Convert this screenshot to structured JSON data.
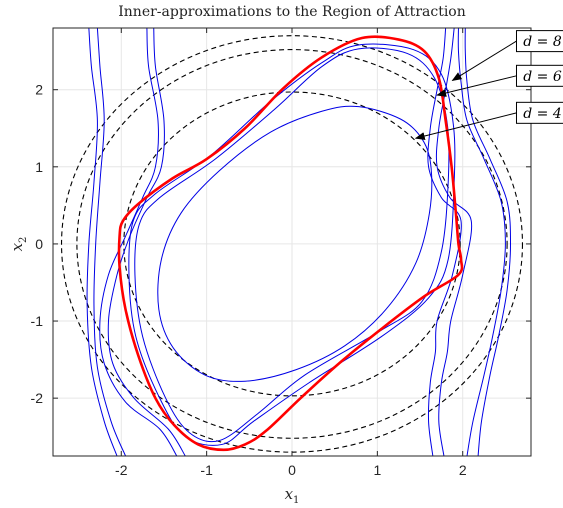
{
  "chart_data": {
    "type": "line",
    "title": "Inner-approximations to the Region of Attraction",
    "xlabel": "x",
    "xlabel_sub": "1",
    "ylabel": "x",
    "ylabel_sub": "2",
    "xlim": [
      -2.8,
      2.8
    ],
    "ylim": [
      -2.75,
      2.8
    ],
    "xticks": [
      -2,
      -1,
      0,
      1,
      2
    ],
    "yticks": [
      -2,
      -1,
      0,
      1,
      2
    ],
    "grid": true,
    "circles": [
      {
        "name": "level-set-d4",
        "radius": 1.97,
        "color": "#000000",
        "dash": true
      },
      {
        "name": "level-set-d6",
        "radius": 2.52,
        "color": "#000000",
        "dash": true
      },
      {
        "name": "level-set-d8",
        "radius": 2.7,
        "color": "#000000",
        "dash": true
      }
    ],
    "inner_regions": [
      {
        "color": "#0000e6",
        "points": [
          [
            0.78,
            1.78
          ],
          [
            1.27,
            1.62
          ],
          [
            1.53,
            1.35
          ],
          [
            1.63,
            0.98
          ],
          [
            1.61,
            0.4
          ],
          [
            1.45,
            -0.25
          ],
          [
            1.1,
            -0.85
          ],
          [
            0.62,
            -1.32
          ],
          [
            0.05,
            -1.63
          ],
          [
            -0.55,
            -1.78
          ],
          [
            -1.02,
            -1.7
          ],
          [
            -1.39,
            -1.35
          ],
          [
            -1.56,
            -0.85
          ],
          [
            -1.53,
            -0.2
          ],
          [
            -1.3,
            0.4
          ],
          [
            -0.85,
            0.95
          ],
          [
            -0.25,
            1.45
          ],
          [
            0.35,
            1.72
          ]
        ]
      },
      {
        "color": "#0000e6",
        "points": [
          [
            0.78,
            2.53
          ],
          [
            1.35,
            2.47
          ],
          [
            1.67,
            2.15
          ],
          [
            1.82,
            1.55
          ],
          [
            1.83,
            0.8
          ],
          [
            1.75,
            -0.1
          ],
          [
            1.52,
            -0.75
          ],
          [
            1.0,
            -1.15
          ],
          [
            0.15,
            -1.7
          ],
          [
            -0.4,
            -2.2
          ],
          [
            -0.85,
            -2.55
          ],
          [
            -1.2,
            -2.45
          ],
          [
            -1.48,
            -2.0
          ],
          [
            -1.75,
            -1.2
          ],
          [
            -1.84,
            -0.4
          ],
          [
            -1.79,
            0.25
          ],
          [
            -1.55,
            0.6
          ],
          [
            -0.9,
            1.1
          ],
          [
            -0.2,
            1.75
          ],
          [
            0.35,
            2.3
          ]
        ]
      },
      {
        "color": "#0000e6",
        "points": [
          [
            0.78,
            2.58
          ],
          [
            1.42,
            2.52
          ],
          [
            1.75,
            2.2
          ],
          [
            1.89,
            1.55
          ],
          [
            1.9,
            0.8
          ],
          [
            1.83,
            -0.2
          ],
          [
            1.6,
            -0.7
          ],
          [
            1.05,
            -1.2
          ],
          [
            0.2,
            -1.8
          ],
          [
            -0.45,
            -2.3
          ],
          [
            -0.82,
            -2.6
          ],
          [
            -1.25,
            -2.5
          ],
          [
            -1.55,
            -2.0
          ],
          [
            -1.83,
            -1.2
          ],
          [
            -1.91,
            -0.4
          ],
          [
            -1.86,
            0.3
          ],
          [
            -1.6,
            0.65
          ],
          [
            -0.95,
            1.15
          ],
          [
            -0.25,
            1.85
          ],
          [
            0.35,
            2.35
          ]
        ]
      }
    ],
    "outer_curves": [
      {
        "color": "#0000e6",
        "points": [
          [
            -2.05,
            -2.75
          ],
          [
            -2.2,
            -2.3
          ],
          [
            -2.35,
            -1.6
          ],
          [
            -2.4,
            -0.8
          ],
          [
            -2.38,
            0.0
          ],
          [
            -2.32,
            0.8
          ],
          [
            -2.28,
            1.6
          ],
          [
            -2.35,
            2.3
          ],
          [
            -2.38,
            2.8
          ]
        ]
      },
      {
        "color": "#0000e6",
        "points": [
          [
            -1.95,
            -2.75
          ],
          [
            -2.12,
            -2.3
          ],
          [
            -2.28,
            -1.6
          ],
          [
            -2.32,
            -0.8
          ],
          [
            -2.3,
            0.0
          ],
          [
            -2.25,
            0.8
          ],
          [
            -2.2,
            1.6
          ],
          [
            -2.25,
            2.3
          ],
          [
            -2.28,
            2.8
          ]
        ]
      },
      {
        "color": "#0000e6",
        "points": [
          [
            -1.35,
            -2.75
          ],
          [
            -1.55,
            -2.4
          ],
          [
            -1.95,
            -2.05
          ],
          [
            -2.2,
            -1.55
          ],
          [
            -2.25,
            -1.0
          ],
          [
            -2.15,
            -0.4
          ],
          [
            -1.95,
            0.1
          ],
          [
            -1.75,
            0.6
          ],
          [
            -1.6,
            1.0
          ],
          [
            -1.57,
            1.6
          ],
          [
            -1.68,
            2.3
          ],
          [
            -1.7,
            2.8
          ]
        ]
      },
      {
        "color": "#0000e6",
        "points": [
          [
            -1.25,
            -2.75
          ],
          [
            -1.45,
            -2.4
          ],
          [
            -1.85,
            -2.0
          ],
          [
            -2.1,
            -1.55
          ],
          [
            -2.15,
            -1.0
          ],
          [
            -2.05,
            -0.4
          ],
          [
            -1.9,
            0.1
          ],
          [
            -1.7,
            0.6
          ],
          [
            -1.53,
            1.0
          ],
          [
            -1.5,
            1.6
          ],
          [
            -1.6,
            2.3
          ],
          [
            -1.62,
            2.8
          ]
        ]
      },
      {
        "color": "#0000e6",
        "points": [
          [
            1.65,
            -2.75
          ],
          [
            1.6,
            -2.3
          ],
          [
            1.62,
            -1.8
          ],
          [
            1.68,
            -1.4
          ],
          [
            1.7,
            -1.0
          ],
          [
            1.88,
            -0.4
          ],
          [
            1.98,
            0.3
          ],
          [
            1.75,
            0.6
          ],
          [
            1.6,
            1.0
          ],
          [
            1.62,
            1.5
          ],
          [
            1.7,
            2.0
          ],
          [
            1.77,
            2.4
          ],
          [
            1.8,
            2.8
          ]
        ]
      },
      {
        "color": "#0000e6",
        "points": [
          [
            1.78,
            -2.75
          ],
          [
            1.72,
            -2.3
          ],
          [
            1.75,
            -1.8
          ],
          [
            1.82,
            -1.4
          ],
          [
            1.86,
            -1.0
          ],
          [
            2.0,
            -0.4
          ],
          [
            2.1,
            0.3
          ],
          [
            1.85,
            0.6
          ],
          [
            1.7,
            1.0
          ],
          [
            1.72,
            1.5
          ],
          [
            1.8,
            2.0
          ],
          [
            1.86,
            2.4
          ],
          [
            1.9,
            2.8
          ]
        ]
      },
      {
        "color": "#0000e6",
        "points": [
          [
            2.05,
            -2.75
          ],
          [
            2.12,
            -2.3
          ],
          [
            2.25,
            -1.7
          ],
          [
            2.35,
            -1.2
          ],
          [
            2.45,
            -0.6
          ],
          [
            2.5,
            0.0
          ],
          [
            2.45,
            0.55
          ],
          [
            2.25,
            1.1
          ],
          [
            2.05,
            1.6
          ],
          [
            1.98,
            2.1
          ],
          [
            1.95,
            2.5
          ],
          [
            1.95,
            2.8
          ]
        ]
      },
      {
        "color": "#0000e6",
        "points": [
          [
            2.18,
            -2.75
          ],
          [
            2.22,
            -2.3
          ],
          [
            2.32,
            -1.7
          ],
          [
            2.42,
            -1.2
          ],
          [
            2.52,
            -0.6
          ],
          [
            2.56,
            0.0
          ],
          [
            2.52,
            0.55
          ],
          [
            2.32,
            1.1
          ],
          [
            2.12,
            1.6
          ],
          [
            2.05,
            2.1
          ],
          [
            2.03,
            2.5
          ],
          [
            2.03,
            2.8
          ]
        ]
      }
    ],
    "highlight_region": {
      "color": "#ff0000",
      "points": [
        [
          0.82,
          2.67
        ],
        [
          1.25,
          2.65
        ],
        [
          1.55,
          2.5
        ],
        [
          1.72,
          2.15
        ],
        [
          1.8,
          1.6
        ],
        [
          1.87,
          1.0
        ],
        [
          1.92,
          0.4
        ],
        [
          1.95,
          0.0
        ],
        [
          1.98,
          -0.2
        ],
        [
          1.95,
          -0.4
        ],
        [
          1.55,
          -0.68
        ],
        [
          1.05,
          -1.1
        ],
        [
          0.55,
          -1.55
        ],
        [
          0.1,
          -2.0
        ],
        [
          -0.3,
          -2.42
        ],
        [
          -0.55,
          -2.6
        ],
        [
          -0.8,
          -2.67
        ],
        [
          -1.1,
          -2.6
        ],
        [
          -1.38,
          -2.35
        ],
        [
          -1.6,
          -2.0
        ],
        [
          -1.8,
          -1.45
        ],
        [
          -1.95,
          -0.85
        ],
        [
          -2.02,
          -0.3
        ],
        [
          -2.02,
          0.1
        ],
        [
          -1.98,
          0.3
        ],
        [
          -1.8,
          0.52
        ],
        [
          -1.4,
          0.85
        ],
        [
          -1.0,
          1.1
        ],
        [
          -0.55,
          1.5
        ],
        [
          -0.1,
          2.02
        ],
        [
          0.35,
          2.42
        ]
      ]
    },
    "annotations": [
      {
        "label": "d = 8",
        "target": [
          1.88,
          2.12
        ],
        "box_x": 2.63,
        "box_y": 2.63
      },
      {
        "label": "d = 6",
        "target": [
          1.7,
          1.93
        ],
        "box_x": 2.63,
        "box_y": 2.18
      },
      {
        "label": "d = 4",
        "target": [
          1.45,
          1.37
        ],
        "box_x": 2.63,
        "box_y": 1.7
      }
    ]
  }
}
